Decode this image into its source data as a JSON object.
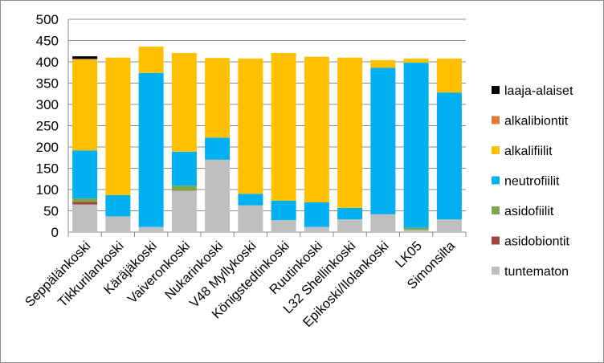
{
  "chart_data": {
    "type": "bar",
    "stacked": true,
    "title": "",
    "xlabel": "",
    "ylabel": "",
    "ylim": [
      0,
      500
    ],
    "yticks": [
      0,
      50,
      100,
      150,
      200,
      250,
      300,
      350,
      400,
      450,
      500
    ],
    "grid": true,
    "legend_position": "right",
    "categories": [
      "Seppälänkoski",
      "Tikkurilankoski",
      "Käräjäkoski",
      "Vaiveronkoski",
      "Nukarinkoski",
      "V48 Myllykoski",
      "Königstedtinkoski",
      "Ruutinkoski",
      "L32 Shellinkoski",
      "Epikoski/Ilolankoski",
      "LK05",
      "Simonsilta"
    ],
    "series": [
      {
        "name": "tuntematon",
        "color": "#bfbfbf",
        "values": [
          65,
          37,
          12,
          97,
          170,
          63,
          28,
          12,
          30,
          42,
          5,
          30
        ]
      },
      {
        "name": "asidobiontit",
        "color": "#a5453f",
        "values": [
          6,
          0,
          0,
          0,
          0,
          0,
          0,
          0,
          0,
          0,
          0,
          0
        ]
      },
      {
        "name": "asidofiilit",
        "color": "#7ea64d",
        "values": [
          8,
          0,
          0,
          12,
          0,
          0,
          0,
          0,
          0,
          0,
          5,
          0
        ]
      },
      {
        "name": "neutrofiilit",
        "color": "#00b0f0",
        "values": [
          113,
          50,
          362,
          80,
          52,
          27,
          46,
          58,
          27,
          344,
          388,
          298
        ]
      },
      {
        "name": "alkalifiilit",
        "color": "#ffc000",
        "values": [
          213,
          323,
          62,
          232,
          187,
          318,
          347,
          342,
          353,
          18,
          10,
          80
        ]
      },
      {
        "name": "alkalibiontit",
        "color": "#e07b39",
        "values": [
          2,
          0,
          0,
          0,
          0,
          0,
          0,
          0,
          0,
          0,
          0,
          0
        ]
      },
      {
        "name": "laaja-alaiset",
        "color": "#000000",
        "values": [
          6,
          0,
          0,
          0,
          0,
          0,
          0,
          0,
          0,
          0,
          0,
          0
        ]
      }
    ],
    "legend_order": [
      "laaja-alaiset",
      "alkalibiontit",
      "alkalifiilit",
      "neutrofiilit",
      "asidofiilit",
      "asidobiontit",
      "tuntematon"
    ]
  }
}
